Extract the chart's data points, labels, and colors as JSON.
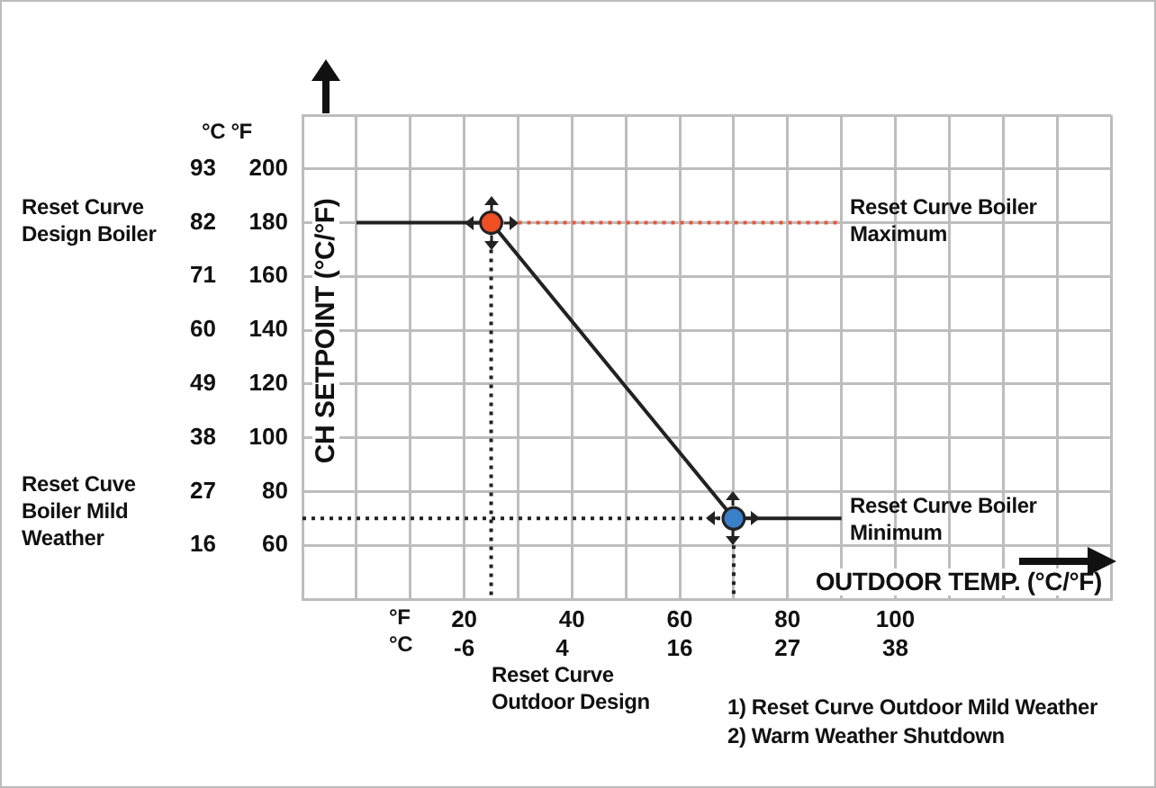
{
  "chart_data": {
    "type": "line",
    "xlabel": "OUTDOOR TEMP. (°C/°F)",
    "ylabel": "CH SETPOINT (°C/°F)",
    "xlim": [
      -10,
      140
    ],
    "xticks": [
      {
        "value": -10,
        "label": null
      },
      {
        "value": 0,
        "label": null
      },
      {
        "value": 10,
        "label": null
      },
      20,
      {
        "value": 30,
        "label": null
      },
      40,
      {
        "value": 50,
        "label": null
      },
      60,
      {
        "value": 70,
        "label": null
      },
      80,
      {
        "value": 90,
        "label": null
      },
      100,
      {
        "value": 110,
        "label": null
      },
      {
        "value": 120,
        "label": null
      },
      {
        "value": 130,
        "label": null
      },
      {
        "value": 140,
        "label": null
      }
    ],
    "x2lim": [
      -22.5,
      60
    ],
    "x2ticks": [
      -6,
      4,
      16,
      27,
      38
    ],
    "y2lim": [
      5,
      104
    ],
    "y2ticks": [
      16,
      27,
      38,
      49,
      60,
      71,
      82,
      93
    ],
    "ylim": [
      40,
      220
    ],
    "yticks": [
      {
        "value": 40,
        "label": null
      },
      60,
      80,
      100,
      120,
      140,
      160,
      180,
      200,
      {
        "value": 220,
        "label": null
      }
    ],
    "grid": true,
    "legend": false,
    "series": [
      {
        "x": [
          0,
          25,
          70,
          90
        ],
        "values": [
          180,
          180,
          70,
          70
        ],
        "color": "#222222",
        "marker": "none",
        "line_style": "solid"
      },
      {
        "x": [
          25,
          90
        ],
        "values": [
          180,
          180
        ],
        "color": "#e8553a",
        "marker": "none",
        "line_style": "dotted"
      },
      {
        "x": [
          25,
          25
        ],
        "values": [
          180,
          40
        ],
        "color": "#222222",
        "marker": "none",
        "line_style": "dotted"
      },
      {
        "x": [
          -10,
          70
        ],
        "values": [
          70,
          70
        ],
        "color": "#222222",
        "marker": "none",
        "line_style": "dotted"
      },
      {
        "x": [
          70,
          70
        ],
        "values": [
          70,
          40
        ],
        "color": "#222222",
        "marker": "none",
        "line_style": "dotted"
      },
      {
        "type": "scatter",
        "x": [
          25
        ],
        "values": [
          180
        ],
        "color": "#f04e23",
        "marker": "circle"
      },
      {
        "type": "scatter",
        "x": [
          70
        ],
        "values": [
          70
        ],
        "color": "#3a80c8",
        "marker": "circle"
      }
    ],
    "annotations": [
      "°C °F",
      "Reset Curve Design Boiler",
      "Reset Cuve Boiler Mild Weather",
      "Reset Curve Boiler Maximum",
      "Reset Curve Boiler Minimum",
      "°F",
      "°C",
      "Reset Curve Outdoor Design",
      "1) Reset Curve Outdoor Mild Weather",
      "2) Warm Weather Shutdown"
    ]
  }
}
